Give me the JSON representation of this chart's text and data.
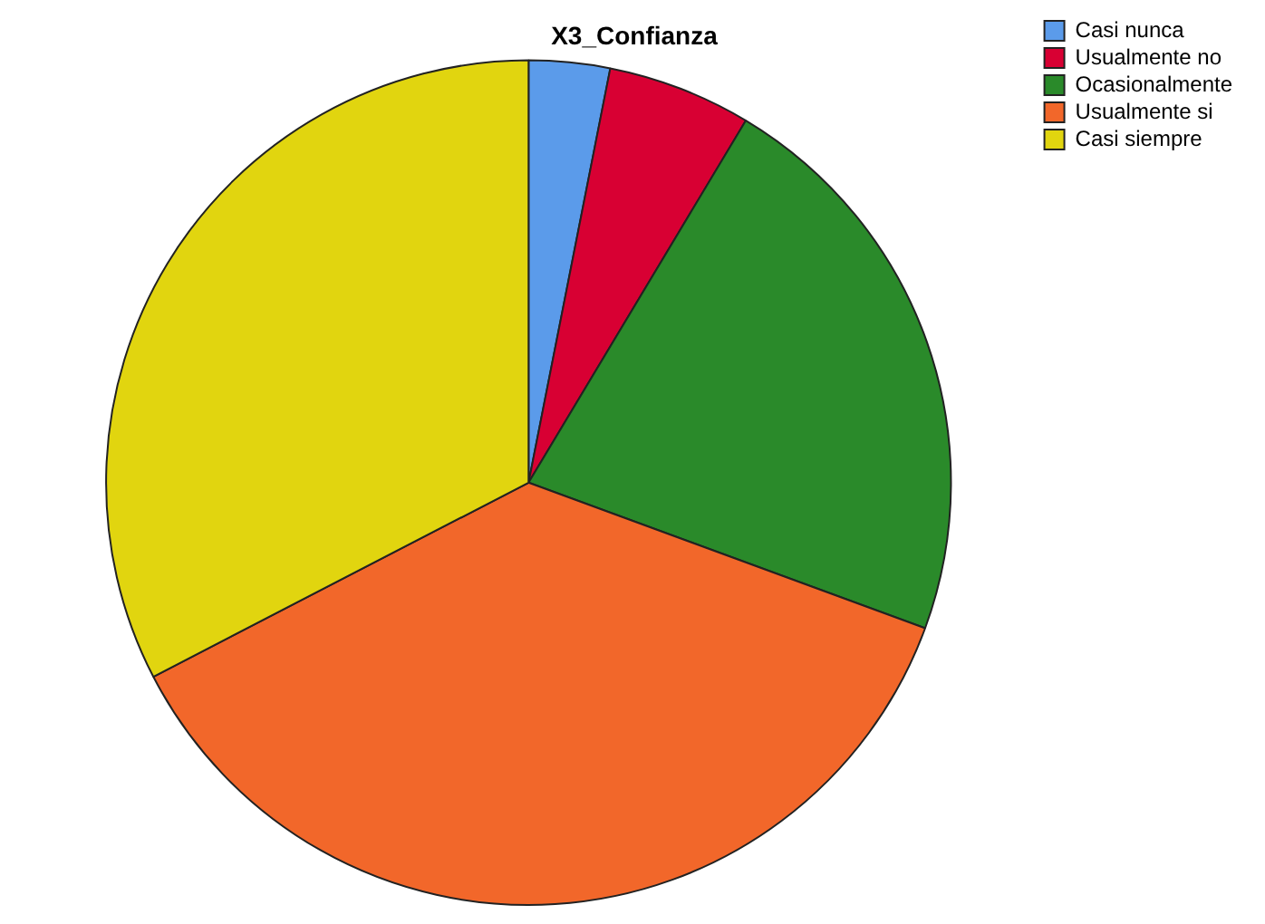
{
  "chart_data": {
    "type": "pie",
    "title": "X3_Confianza",
    "categories": [
      "Casi nunca",
      "Usualmente no",
      "Ocasionalmente",
      "Usualmente si",
      "Casi siempre"
    ],
    "values": [
      3.1,
      5.5,
      22.0,
      36.8,
      32.6
    ],
    "colors": [
      "#5b9bea",
      "#d80033",
      "#2a8a2a",
      "#f2672a",
      "#e1d50f"
    ],
    "legend": "top right"
  }
}
